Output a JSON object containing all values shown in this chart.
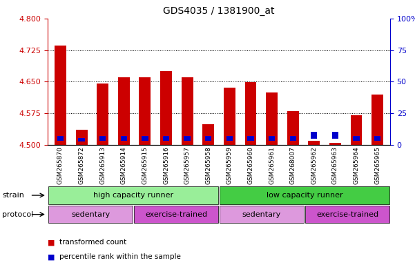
{
  "title": "GDS4035 / 1381900_at",
  "samples": [
    "GSM265870",
    "GSM265872",
    "GSM265913",
    "GSM265914",
    "GSM265915",
    "GSM265916",
    "GSM265957",
    "GSM265958",
    "GSM265959",
    "GSM265960",
    "GSM265961",
    "GSM268007",
    "GSM265962",
    "GSM265963",
    "GSM265964",
    "GSM265965"
  ],
  "transformed_count": [
    4.735,
    4.535,
    4.645,
    4.66,
    4.66,
    4.675,
    4.66,
    4.548,
    4.635,
    4.648,
    4.625,
    4.58,
    4.51,
    4.505,
    4.57,
    4.62
  ],
  "percentile_rank": [
    10,
    8,
    10,
    10,
    10,
    10,
    10,
    10,
    10,
    10,
    10,
    10,
    15,
    15,
    10,
    10
  ],
  "ylim_left": [
    4.5,
    4.8
  ],
  "ylim_right": [
    0,
    100
  ],
  "yticks_left": [
    4.5,
    4.575,
    4.65,
    4.725,
    4.8
  ],
  "yticks_right": [
    0,
    25,
    50,
    75,
    100
  ],
  "bar_color": "#cc0000",
  "blue_color": "#0000cc",
  "bar_bottom": 4.5,
  "strain_groups": [
    {
      "label": "high capacity runner",
      "start": 0,
      "end": 8,
      "color": "#99ee99"
    },
    {
      "label": "low capacity runner",
      "start": 8,
      "end": 16,
      "color": "#44cc44"
    }
  ],
  "protocol_groups": [
    {
      "label": "sedentary",
      "start": 0,
      "end": 4,
      "color": "#dd99dd"
    },
    {
      "label": "exercise-trained",
      "start": 4,
      "end": 8,
      "color": "#cc55cc"
    },
    {
      "label": "sedentary",
      "start": 8,
      "end": 12,
      "color": "#dd99dd"
    },
    {
      "label": "exercise-trained",
      "start": 12,
      "end": 16,
      "color": "#cc55cc"
    }
  ],
  "legend_items": [
    {
      "color": "#cc0000",
      "label": "transformed count"
    },
    {
      "color": "#0000cc",
      "label": "percentile rank within the sample"
    }
  ],
  "tick_label_color_left": "#cc0000",
  "tick_label_color_right": "#0000cc",
  "background_color": "#ffffff",
  "strain_label": "strain",
  "protocol_label": "protocol",
  "bar_width": 0.55
}
